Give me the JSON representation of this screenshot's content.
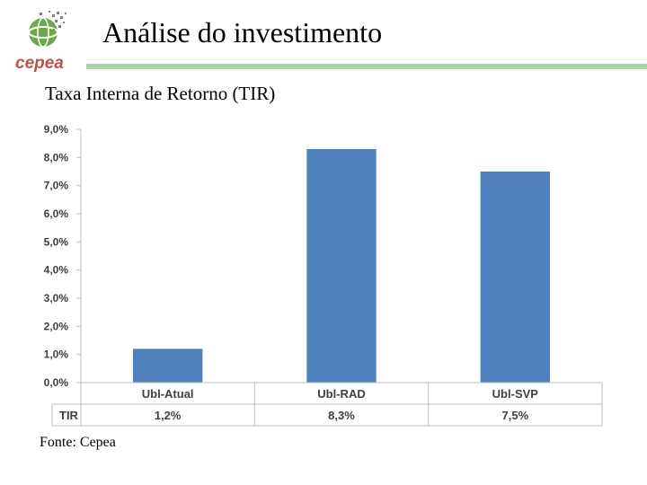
{
  "header": {
    "title": "Análise do investimento",
    "logo_text": "cepea"
  },
  "subtitle": "Taxa Interna de Retorno (TIR)",
  "source": "Fonte: Cepea",
  "colors": {
    "bar": "#4f81bd",
    "accent_rule": "#a9d3a6",
    "logo_text": "#c0504d",
    "logo_globe": "#6fa84a"
  },
  "chart_data": {
    "type": "bar",
    "categories": [
      "Ubl-Atual",
      "Ubl-RAD",
      "Ubl-SVP"
    ],
    "series": [
      {
        "name": "TIR",
        "values": [
          1.2,
          8.3,
          7.5
        ]
      }
    ],
    "table_row_label": "TIR",
    "table_values": [
      "1,2%",
      "8,3%",
      "7,5%"
    ],
    "y_ticks": [
      "0,0%",
      "1,0%",
      "2,0%",
      "3,0%",
      "4,0%",
      "5,0%",
      "6,0%",
      "7,0%",
      "8,0%",
      "9,0%"
    ],
    "ylim": [
      0,
      9
    ],
    "unit": "%",
    "grid": false,
    "legend": "data table below chart"
  }
}
